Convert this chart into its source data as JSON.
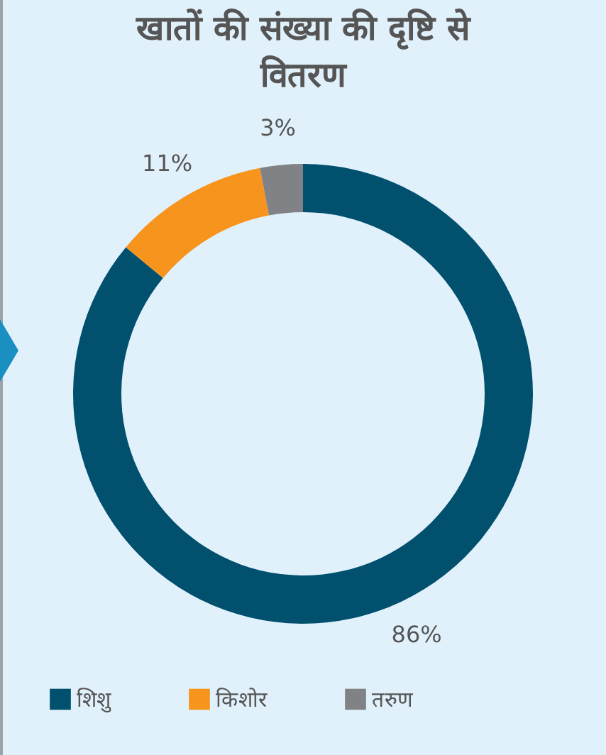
{
  "chart_data": {
    "type": "donut",
    "title": "खातों की संख्या की दृष्टि से वितरण",
    "categories": [
      "शिशु",
      "किशोर",
      "तरुण"
    ],
    "values": [
      86,
      11,
      3
    ],
    "colors": [
      "#00506e",
      "#f7941d",
      "#808285"
    ],
    "value_labels": [
      "86%",
      "11%",
      "3%"
    ],
    "legend": "bottom"
  }
}
